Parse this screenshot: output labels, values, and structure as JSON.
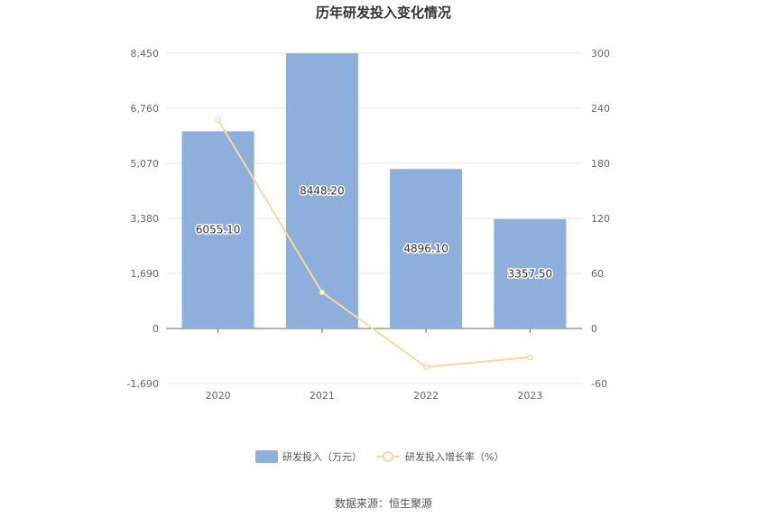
{
  "chart_data": {
    "type": "bar",
    "title": "历年研发投入变化情况",
    "categories": [
      "2020",
      "2021",
      "2022",
      "2023"
    ],
    "series": [
      {
        "name": "研发投入（万元）",
        "type": "bar",
        "axis": "left",
        "values": [
          6055.1,
          8448.2,
          4896.1,
          3357.5
        ],
        "labels": [
          "6055.10",
          "8448.20",
          "4896.10",
          "3357.50"
        ],
        "color": "#8eaedb"
      },
      {
        "name": "研发投入增长率（%）",
        "type": "line",
        "axis": "right",
        "values": [
          227.3,
          39.5,
          -42.0,
          -31.4
        ],
        "color": "#f5d9a0"
      }
    ],
    "y_left": {
      "ylim": [
        -1690,
        8450
      ],
      "ticks": [
        8450,
        6760,
        5070,
        3380,
        1690,
        0,
        -1690
      ],
      "tick_labels": [
        "8,450",
        "6,760",
        "5,070",
        "3,380",
        "1,690",
        "0",
        "-1,690"
      ]
    },
    "y_right": {
      "ylim": [
        -60,
        300
      ],
      "ticks": [
        300,
        240,
        180,
        120,
        60,
        0,
        -60
      ],
      "tick_labels": [
        "300",
        "240",
        "180",
        "120",
        "60",
        "0",
        "-60"
      ]
    },
    "grid": true,
    "legend_position": "bottom"
  },
  "source": "数据来源：恒生聚源"
}
